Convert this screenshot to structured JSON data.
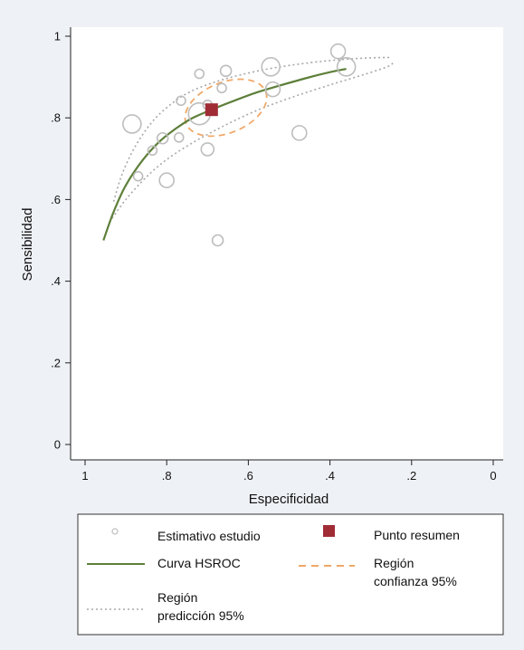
{
  "chart_data": {
    "type": "scatter",
    "xlabel": "Especificidad",
    "ylabel": "Sensibilidad",
    "x_reversed": true,
    "xlim": [
      1,
      0
    ],
    "ylim": [
      0,
      1
    ],
    "xticks": [
      "1",
      ".8",
      ".6",
      ".4",
      ".2",
      "0"
    ],
    "xtick_values": [
      1,
      0.8,
      0.6,
      0.4,
      0.2,
      0
    ],
    "yticks": [
      "0",
      ".2",
      ".4",
      ".6",
      ".8",
      "1"
    ],
    "ytick_values": [
      0,
      0.2,
      0.4,
      0.6,
      0.8,
      1
    ],
    "grid": false,
    "legend_position": "bottom",
    "colors": {
      "background": "#eef1f5",
      "plot_background": "#ffffff",
      "study": "#bdbdbd",
      "hsroc": "#5e7f3a",
      "summary": "#a02c36",
      "confidence": "#f0a868",
      "prediction": "#a8a8a8"
    },
    "studies": [
      {
        "x": 0.885,
        "y": 0.785,
        "size": 10
      },
      {
        "x": 0.87,
        "y": 0.657,
        "size": 5
      },
      {
        "x": 0.835,
        "y": 0.72,
        "size": 5
      },
      {
        "x": 0.81,
        "y": 0.75,
        "size": 6
      },
      {
        "x": 0.8,
        "y": 0.647,
        "size": 8
      },
      {
        "x": 0.77,
        "y": 0.752,
        "size": 5
      },
      {
        "x": 0.765,
        "y": 0.842,
        "size": 5
      },
      {
        "x": 0.72,
        "y": 0.908,
        "size": 5
      },
      {
        "x": 0.72,
        "y": 0.81,
        "size": 12
      },
      {
        "x": 0.7,
        "y": 0.723,
        "size": 7
      },
      {
        "x": 0.7,
        "y": 0.832,
        "size": 5
      },
      {
        "x": 0.675,
        "y": 0.5,
        "size": 6
      },
      {
        "x": 0.665,
        "y": 0.873,
        "size": 5
      },
      {
        "x": 0.655,
        "y": 0.915,
        "size": 6
      },
      {
        "x": 0.545,
        "y": 0.925,
        "size": 10
      },
      {
        "x": 0.54,
        "y": 0.87,
        "size": 8
      },
      {
        "x": 0.475,
        "y": 0.763,
        "size": 8
      },
      {
        "x": 0.38,
        "y": 0.963,
        "size": 8
      },
      {
        "x": 0.36,
        "y": 0.925,
        "size": 10
      }
    ],
    "summary_point": {
      "x": 0.69,
      "y": 0.82
    },
    "hsroc_curve": [
      {
        "x": 0.955,
        "y": 0.5
      },
      {
        "x": 0.93,
        "y": 0.57
      },
      {
        "x": 0.9,
        "y": 0.635
      },
      {
        "x": 0.86,
        "y": 0.695
      },
      {
        "x": 0.82,
        "y": 0.74
      },
      {
        "x": 0.78,
        "y": 0.772
      },
      {
        "x": 0.74,
        "y": 0.798
      },
      {
        "x": 0.69,
        "y": 0.82
      },
      {
        "x": 0.64,
        "y": 0.84
      },
      {
        "x": 0.58,
        "y": 0.862
      },
      {
        "x": 0.52,
        "y": 0.88
      },
      {
        "x": 0.46,
        "y": 0.897
      },
      {
        "x": 0.4,
        "y": 0.912
      },
      {
        "x": 0.36,
        "y": 0.92
      }
    ],
    "prediction_upper": [
      {
        "x": 0.93,
        "y": 0.595
      },
      {
        "x": 0.91,
        "y": 0.66
      },
      {
        "x": 0.88,
        "y": 0.725
      },
      {
        "x": 0.84,
        "y": 0.785
      },
      {
        "x": 0.8,
        "y": 0.825
      },
      {
        "x": 0.75,
        "y": 0.86
      },
      {
        "x": 0.69,
        "y": 0.885
      },
      {
        "x": 0.62,
        "y": 0.905
      },
      {
        "x": 0.54,
        "y": 0.922
      },
      {
        "x": 0.45,
        "y": 0.935
      },
      {
        "x": 0.37,
        "y": 0.943
      },
      {
        "x": 0.3,
        "y": 0.947
      },
      {
        "x": 0.25,
        "y": 0.948
      }
    ],
    "prediction_lower": [
      {
        "x": 0.94,
        "y": 0.545
      },
      {
        "x": 0.9,
        "y": 0.6
      },
      {
        "x": 0.85,
        "y": 0.655
      },
      {
        "x": 0.8,
        "y": 0.698
      },
      {
        "x": 0.74,
        "y": 0.737
      },
      {
        "x": 0.68,
        "y": 0.77
      },
      {
        "x": 0.62,
        "y": 0.8
      },
      {
        "x": 0.56,
        "y": 0.826
      },
      {
        "x": 0.5,
        "y": 0.848
      },
      {
        "x": 0.44,
        "y": 0.868
      },
      {
        "x": 0.38,
        "y": 0.887
      },
      {
        "x": 0.32,
        "y": 0.905
      },
      {
        "x": 0.26,
        "y": 0.925
      },
      {
        "x": 0.245,
        "y": 0.935
      }
    ],
    "confidence_region": {
      "cx": 0.655,
      "cy": 0.825,
      "rx": 0.105,
      "ry": 0.062,
      "rotation_deg": 22
    },
    "legend": [
      {
        "key": "study",
        "label": "Estimativo estudio",
        "symbol": "circle"
      },
      {
        "key": "summary",
        "label": "Punto resumen",
        "symbol": "square"
      },
      {
        "key": "hsroc",
        "label": "Curva HSROC",
        "symbol": "solid-line"
      },
      {
        "key": "confidence",
        "label": "Región confianza 95%",
        "symbol": "dashed-line"
      },
      {
        "key": "prediction",
        "label": "Región predicción 95%",
        "symbol": "dotted-line"
      }
    ]
  }
}
